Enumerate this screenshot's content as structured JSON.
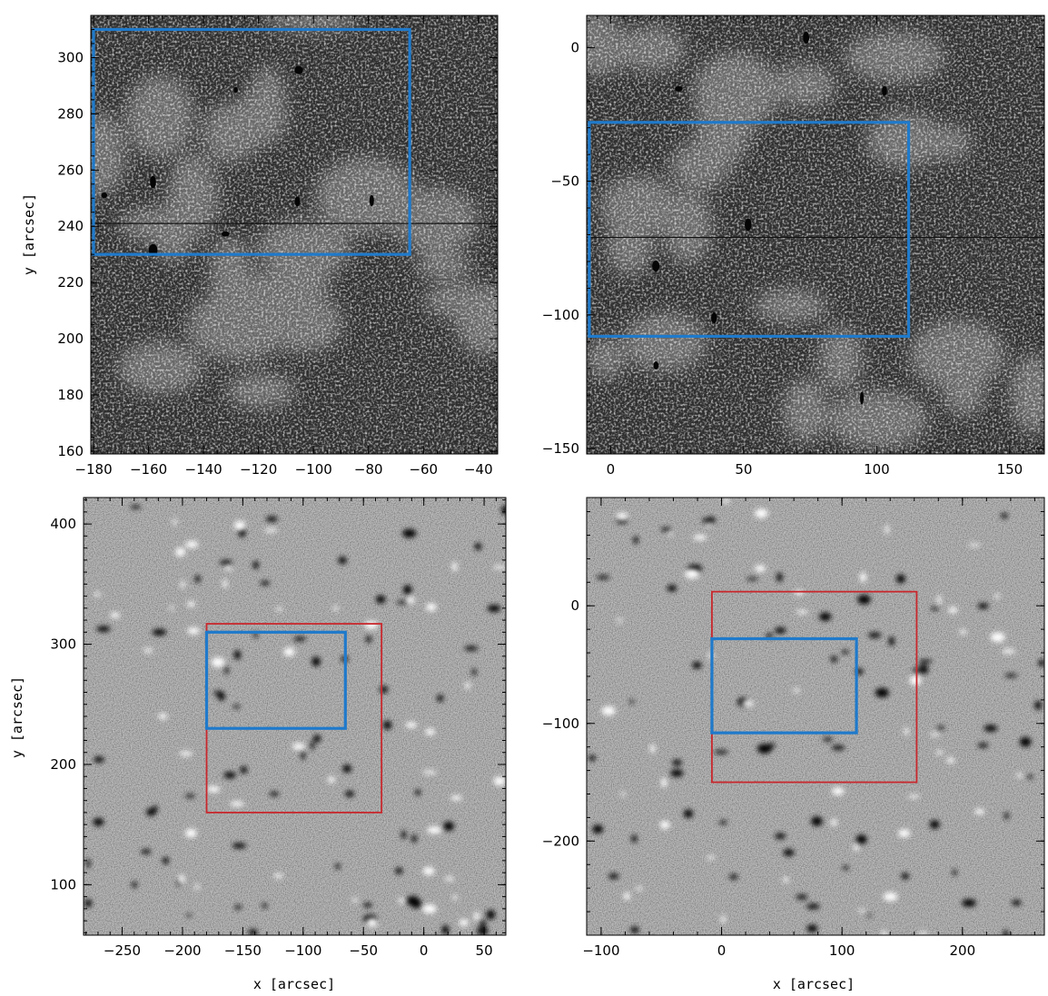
{
  "colors": {
    "box_blue": "#1f7acb",
    "box_red": "#c8282d",
    "intensity_dark": "#2e2e2e",
    "magnetogram_gray": "#8d8d8d"
  },
  "panels": [
    {
      "id": "top-left",
      "kind": "intensity",
      "xlim": [
        -181,
        -33
      ],
      "ylim": [
        159,
        315
      ],
      "xticks": [
        -180,
        -160,
        -140,
        -120,
        -100,
        -80,
        -60,
        -40
      ],
      "yticks": [
        160,
        180,
        200,
        220,
        240,
        260,
        280,
        300
      ],
      "xminor": 5,
      "yminor": 5,
      "xlabel": "",
      "ylabel": "y [arcsec]",
      "dark_line_y": 241,
      "boxes": [
        {
          "color": "blue",
          "x": [
            -180,
            -65
          ],
          "y": [
            230,
            310
          ]
        }
      ]
    },
    {
      "id": "top-right",
      "kind": "intensity",
      "xlim": [
        -9,
        163
      ],
      "ylim": [
        -152,
        12
      ],
      "xticks": [
        0,
        50,
        100,
        150
      ],
      "yticks": [
        -150,
        -100,
        -50,
        0
      ],
      "xminor": 5,
      "yminor": 10,
      "xlabel": "",
      "ylabel": "",
      "dark_line_y": -71,
      "boxes": [
        {
          "color": "blue",
          "x": [
            -8,
            112
          ],
          "y": [
            -108,
            -28
          ]
        }
      ]
    },
    {
      "id": "bottom-left",
      "kind": "magnetogram",
      "xlim": [
        -282,
        68
      ],
      "ylim": [
        58,
        422
      ],
      "xticks": [
        -250,
        -200,
        -150,
        -100,
        -50,
        0,
        50
      ],
      "yticks": [
        100,
        200,
        300,
        400
      ],
      "xminor": 10,
      "yminor": 10,
      "xlabel": "x [arcsec]",
      "ylabel": "y [arcsec]",
      "boxes": [
        {
          "color": "red",
          "x": [
            -180,
            -35
          ],
          "y": [
            160,
            317
          ]
        },
        {
          "color": "blue",
          "x": [
            -180,
            -65
          ],
          "y": [
            230,
            310
          ]
        }
      ]
    },
    {
      "id": "bottom-right",
      "kind": "magnetogram",
      "xlim": [
        -112,
        268
      ],
      "ylim": [
        -280,
        92
      ],
      "xticks": [
        -100,
        0,
        100,
        200
      ],
      "yticks": [
        -200,
        -100,
        0
      ],
      "xminor": 20,
      "yminor": 20,
      "xlabel": "x [arcsec]",
      "ylabel": "",
      "boxes": [
        {
          "color": "red",
          "x": [
            -8,
            162
          ],
          "y": [
            -150,
            12
          ]
        },
        {
          "color": "blue",
          "x": [
            -8,
            112
          ],
          "y": [
            -108,
            -28
          ]
        }
      ]
    }
  ]
}
